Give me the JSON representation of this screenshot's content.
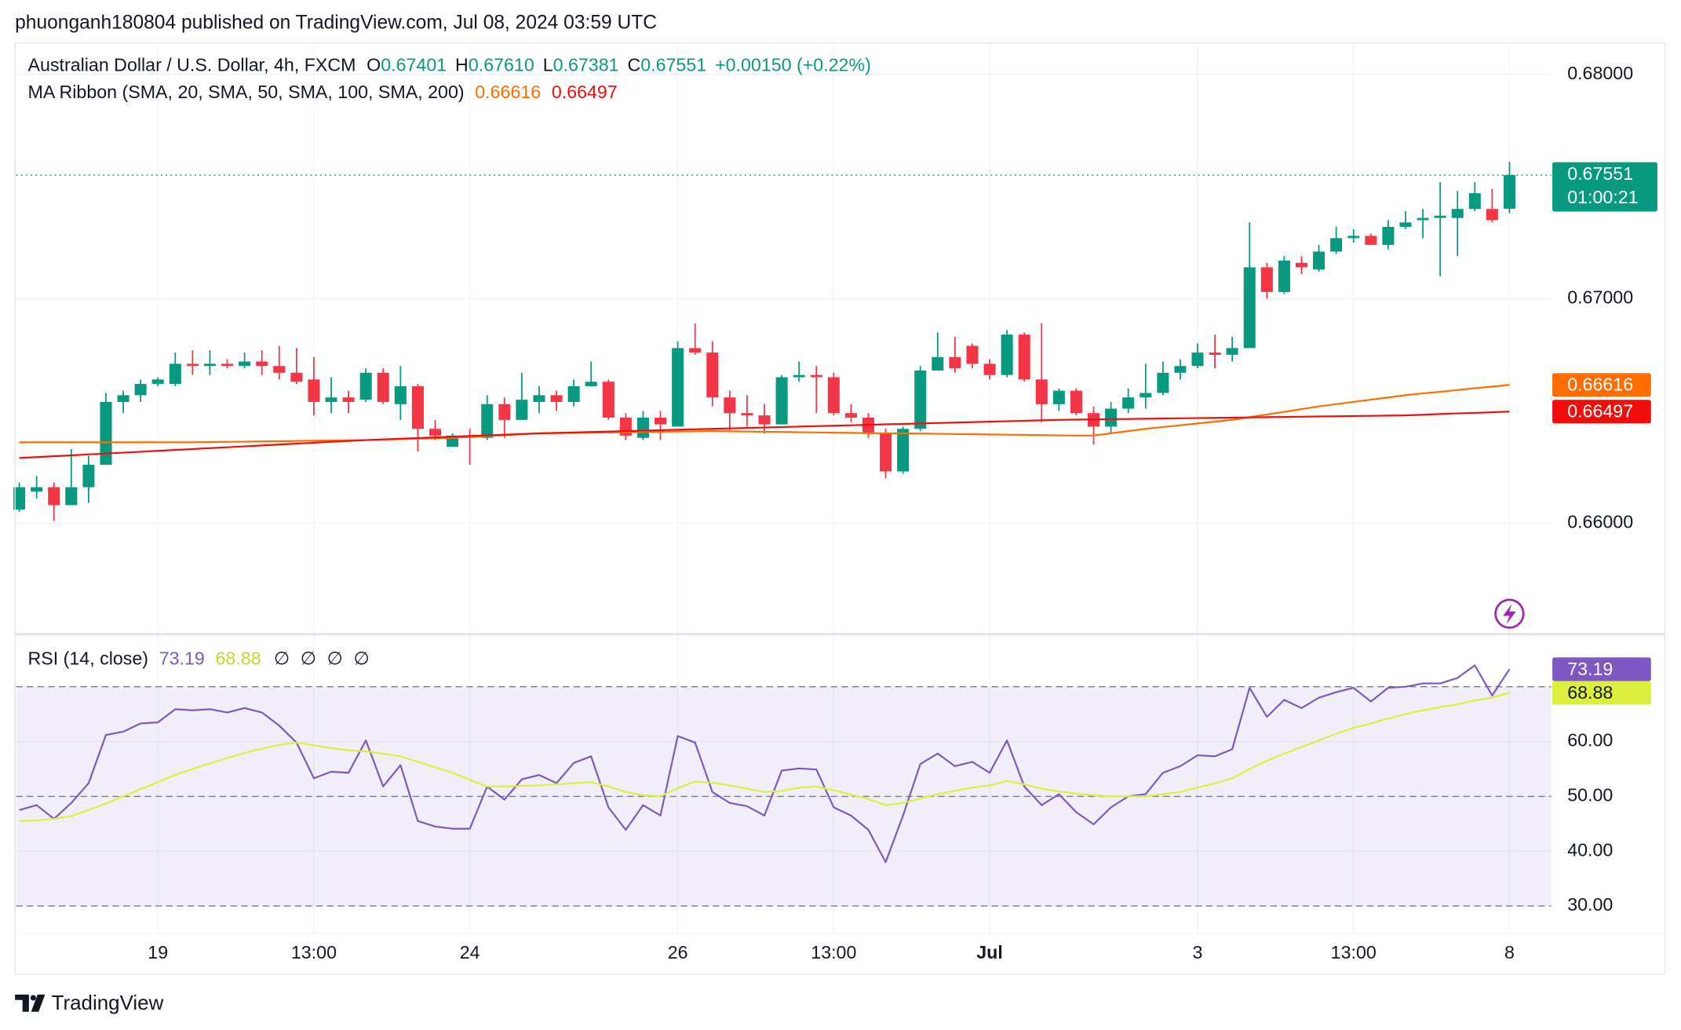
{
  "header": "phuonganh180804 published on TradingView.com, Jul 08, 2024 03:59 UTC",
  "footer": "TradingView",
  "chart_data": [
    {
      "type": "candlestick",
      "title": "Australian Dollar / U.S. Dollar, 4h, FXCM",
      "ohlc": [
        {
          "label": "O",
          "value": "0.67401"
        },
        {
          "label": "H",
          "value": "0.67610"
        },
        {
          "label": "L",
          "value": "0.67381"
        },
        {
          "label": "C",
          "value": "0.67551"
        }
      ],
      "change": "+0.00150 (+0.22%)",
      "indicator": "MA Ribbon (SMA, 20, SMA, 50, SMA, 100, SMA, 200)",
      "countdown": "01:00:21",
      "categories": [
        null,
        null,
        null,
        null,
        null,
        null,
        null,
        null,
        "19",
        null,
        null,
        null,
        null,
        null,
        null,
        null,
        null,
        "13:00",
        null,
        null,
        null,
        null,
        null,
        null,
        null,
        null,
        "24",
        null,
        null,
        null,
        null,
        null,
        null,
        null,
        null,
        null,
        null,
        null,
        "26",
        null,
        null,
        null,
        null,
        null,
        null,
        null,
        null,
        "13:00",
        null,
        null,
        null,
        null,
        null,
        null,
        null,
        null,
        "Jul",
        null,
        null,
        null,
        null,
        null,
        null,
        null,
        null,
        null,
        null,
        null,
        "3",
        null,
        null,
        null,
        null,
        null,
        null,
        null,
        null,
        "13:00",
        null,
        null,
        null,
        null,
        null,
        null,
        null,
        null,
        "8"
      ],
      "open": [
        0.6606,
        0.6614,
        0.6616,
        0.6608,
        0.6616,
        0.6626,
        0.6654,
        0.6657,
        0.6662,
        0.6662,
        0.6671,
        0.667,
        0.6671,
        0.667,
        0.6672,
        0.667,
        0.6667,
        0.6664,
        0.6654,
        0.6656,
        0.6655,
        0.6667,
        0.6653,
        0.6661,
        0.6642,
        0.6634,
        0.6639,
        0.6638,
        0.6653,
        0.6646,
        0.6654,
        0.6657,
        0.6654,
        0.6661,
        0.6663,
        0.6647,
        0.6638,
        0.6647,
        0.6643,
        0.6678,
        0.6676,
        0.6656,
        0.6649,
        0.6648,
        0.6644,
        0.6665,
        0.6666,
        0.6665,
        0.6649,
        0.6647,
        0.664,
        0.6623,
        0.6642,
        0.6668,
        0.6674,
        0.6679,
        0.6671,
        0.6666,
        0.6684,
        0.6664,
        0.6653,
        0.6659,
        0.6649,
        0.6643,
        0.6651,
        0.6656,
        0.6658,
        0.6667,
        0.667,
        0.6676,
        0.6675,
        0.6678,
        0.6714,
        0.6703,
        0.6716,
        0.6713,
        0.6721,
        0.6727,
        0.6728,
        0.6724,
        0.6732,
        0.6735,
        0.6736,
        0.6736,
        0.674,
        0.674,
        0.67401
      ],
      "high": [
        0.6618,
        0.6621,
        0.6618,
        0.6633,
        0.663,
        0.6658,
        0.6659,
        0.6664,
        0.6665,
        0.6676,
        0.6677,
        0.6677,
        0.6673,
        0.6676,
        0.6677,
        0.6679,
        0.6678,
        0.6674,
        0.6665,
        0.6659,
        0.6669,
        0.6669,
        0.667,
        0.6662,
        0.6646,
        0.664,
        0.6642,
        0.6657,
        0.6656,
        0.6667,
        0.6661,
        0.6659,
        0.6664,
        0.6672,
        0.6664,
        0.6649,
        0.665,
        0.665,
        0.6681,
        0.6689,
        0.6681,
        0.6659,
        0.6657,
        0.6653,
        0.6666,
        0.6672,
        0.667,
        0.6667,
        0.6653,
        0.6649,
        0.6642,
        0.6643,
        0.667,
        0.6685,
        0.6683,
        0.668,
        0.6673,
        0.6686,
        0.6685,
        0.6689,
        0.666,
        0.666,
        0.6652,
        0.6654,
        0.666,
        0.6671,
        0.6672,
        0.6673,
        0.668,
        0.6684,
        0.6683,
        0.6734,
        0.6716,
        0.6719,
        0.6719,
        0.6724,
        0.6732,
        0.6731,
        0.6729,
        0.6735,
        0.6739,
        0.674,
        0.6752,
        0.6748,
        0.6752,
        0.6749,
        0.6761
      ],
      "low": [
        0.6605,
        0.6611,
        0.6601,
        0.6608,
        0.6609,
        0.6626,
        0.6649,
        0.6654,
        0.6661,
        0.6661,
        0.6666,
        0.6666,
        0.6669,
        0.6669,
        0.6666,
        0.6664,
        0.6662,
        0.6648,
        0.6649,
        0.6649,
        0.6654,
        0.6653,
        0.6646,
        0.6632,
        0.6637,
        0.6634,
        0.6626,
        0.6637,
        0.6638,
        0.6646,
        0.6649,
        0.665,
        0.6652,
        0.6661,
        0.6646,
        0.6637,
        0.6637,
        0.6637,
        0.6643,
        0.6675,
        0.6652,
        0.6641,
        0.6643,
        0.664,
        0.6644,
        0.6663,
        0.6649,
        0.6648,
        0.6645,
        0.6638,
        0.662,
        0.6622,
        0.6641,
        0.6668,
        0.6667,
        0.6669,
        0.6664,
        0.6665,
        0.6663,
        0.6645,
        0.665,
        0.6648,
        0.6635,
        0.664,
        0.6649,
        0.6651,
        0.6657,
        0.6664,
        0.6669,
        0.6669,
        0.6672,
        0.6678,
        0.67,
        0.6702,
        0.6711,
        0.6712,
        0.672,
        0.6725,
        0.6724,
        0.6722,
        0.6731,
        0.6727,
        0.671,
        0.6719,
        0.6739,
        0.6734,
        0.67381
      ],
      "close": [
        0.6616,
        0.6616,
        0.6608,
        0.6616,
        0.6626,
        0.6654,
        0.6657,
        0.6662,
        0.6664,
        0.6671,
        0.667,
        0.6671,
        0.667,
        0.6672,
        0.667,
        0.6667,
        0.6663,
        0.6654,
        0.6656,
        0.6654,
        0.6667,
        0.6654,
        0.6661,
        0.6642,
        0.6639,
        0.6639,
        0.6638,
        0.6653,
        0.6646,
        0.6655,
        0.6657,
        0.6654,
        0.6661,
        0.6663,
        0.6647,
        0.6639,
        0.6647,
        0.6644,
        0.6678,
        0.6676,
        0.6656,
        0.6649,
        0.6648,
        0.6644,
        0.6665,
        0.6666,
        0.6665,
        0.6649,
        0.6647,
        0.664,
        0.6623,
        0.6642,
        0.6668,
        0.6674,
        0.6669,
        0.6671,
        0.6666,
        0.6684,
        0.6664,
        0.6653,
        0.6659,
        0.6649,
        0.6643,
        0.6651,
        0.6656,
        0.6658,
        0.6667,
        0.667,
        0.6676,
        0.6675,
        0.6678,
        0.6714,
        0.6703,
        0.6717,
        0.6714,
        0.6721,
        0.6727,
        0.6728,
        0.6724,
        0.6732,
        0.6734,
        0.6736,
        0.6737,
        0.674,
        0.6747,
        0.6735,
        0.67551
      ],
      "up_color": "#089981",
      "down_color": "#f23645",
      "series": [
        {
          "color": "#ff6d00",
          "values": [
            0.6636,
            0.6636,
            0.6636,
            0.6636,
            0.6636,
            0.6636,
            0.6636,
            0.6636,
            0.6636,
            0.6636,
            0.6636,
            0.66361,
            0.66362,
            0.66363,
            0.66364,
            0.66365,
            0.66366,
            0.66367,
            0.66368,
            0.66369,
            0.6637,
            0.66372,
            0.66374,
            0.66376,
            0.66378,
            0.6638,
            0.66384,
            0.66388,
            0.66392,
            0.66396,
            0.664,
            0.66401,
            0.66402,
            0.66403,
            0.66404,
            0.66405,
            0.66406,
            0.66407,
            0.66408,
            0.66409,
            0.6641,
            0.66409,
            0.66408,
            0.66407,
            0.66406,
            0.66405,
            0.66404,
            0.66403,
            0.66402,
            0.66401,
            0.664,
            0.664,
            0.66399,
            0.66398,
            0.66397,
            0.66396,
            0.66395,
            0.66394,
            0.66393,
            0.66392,
            0.66391,
            0.6639,
            0.6639,
            0.664,
            0.6641,
            0.6642,
            0.66428,
            0.66436,
            0.66444,
            0.66452,
            0.6646,
            0.66472,
            0.66484,
            0.66496,
            0.66508,
            0.6652,
            0.6653,
            0.6654,
            0.6655,
            0.6656,
            0.6657,
            0.66578,
            0.66585,
            0.66593,
            0.66601,
            0.66608,
            0.66616
          ]
        },
        {
          "color": "#f20d0d",
          "values": [
            0.6629,
            0.66294,
            0.66298,
            0.66302,
            0.66306,
            0.6631,
            0.66314,
            0.66318,
            0.66322,
            0.66326,
            0.6633,
            0.66334,
            0.66338,
            0.66342,
            0.66346,
            0.6635,
            0.66354,
            0.66358,
            0.66362,
            0.66366,
            0.6637,
            0.66373,
            0.66376,
            0.66379,
            0.66382,
            0.66385,
            0.66388,
            0.66391,
            0.66394,
            0.66397,
            0.664,
            0.66402,
            0.66404,
            0.66406,
            0.66408,
            0.6641,
            0.66412,
            0.66414,
            0.66416,
            0.66418,
            0.6642,
            0.66422,
            0.66424,
            0.66426,
            0.66428,
            0.6643,
            0.66432,
            0.66434,
            0.66436,
            0.66438,
            0.6644,
            0.66442,
            0.66444,
            0.66446,
            0.66448,
            0.6645,
            0.66452,
            0.66454,
            0.66456,
            0.66458,
            0.6646,
            0.66461,
            0.66462,
            0.66463,
            0.66464,
            0.66465,
            0.66466,
            0.66467,
            0.66468,
            0.66469,
            0.6647,
            0.66471,
            0.66472,
            0.66473,
            0.66474,
            0.66475,
            0.66476,
            0.66477,
            0.66478,
            0.66479,
            0.6648,
            0.66483,
            0.66486,
            0.66489,
            0.66491,
            0.66494,
            0.66497
          ]
        }
      ],
      "ylim": [
        0.6551,
        0.6814
      ],
      "yticks": [
        {
          "value": 0.66,
          "label": "0.66000"
        },
        {
          "value": 0.67,
          "label": "0.67000"
        },
        {
          "value": 0.68,
          "label": "0.68000"
        }
      ],
      "grid": true
    },
    {
      "type": "line",
      "title": "RSI (14, close)",
      "placeholders": [
        "∅",
        "∅",
        "∅",
        "∅"
      ],
      "series": [
        {
          "color": "#7e57c2",
          "values": [
            47.5,
            48.4,
            45.9,
            48.8,
            52.4,
            61.2,
            61.8,
            63.3,
            63.5,
            65.9,
            65.7,
            65.9,
            65.3,
            66.1,
            65.3,
            62.9,
            59.8,
            53.3,
            54.5,
            54.3,
            60.2,
            51.8,
            55.7,
            45.5,
            44.5,
            44.1,
            44.1,
            51.8,
            49.4,
            53.1,
            53.9,
            52.4,
            56.1,
            57.3,
            48.0,
            43.9,
            48.4,
            46.5,
            61.0,
            59.8,
            50.8,
            48.8,
            48.2,
            46.5,
            54.7,
            55.1,
            54.9,
            48.0,
            46.5,
            43.9,
            38.0,
            46.5,
            55.9,
            57.8,
            55.5,
            56.3,
            54.3,
            60.2,
            51.8,
            48.4,
            50.4,
            47.1,
            44.9,
            48.0,
            50.0,
            50.4,
            54.3,
            55.5,
            57.5,
            57.3,
            58.6,
            69.8,
            64.5,
            67.6,
            66.1,
            68.0,
            69.0,
            69.8,
            67.3,
            69.8,
            70.0,
            70.6,
            70.6,
            71.6,
            73.9,
            68.4,
            73.19
          ]
        },
        {
          "color": "#dcef3c",
          "values": [
            45.5,
            45.6,
            45.9,
            46.4,
            47.5,
            48.7,
            50.0,
            51.3,
            52.6,
            53.9,
            55.0,
            56.0,
            57.0,
            57.9,
            58.7,
            59.4,
            59.8,
            59.3,
            58.8,
            58.4,
            58.2,
            57.8,
            57.3,
            56.3,
            55.3,
            54.3,
            53.0,
            51.8,
            51.8,
            51.9,
            52.0,
            52.2,
            52.4,
            52.6,
            51.8,
            50.8,
            50.2,
            50.0,
            51.5,
            52.7,
            52.5,
            52.0,
            51.4,
            50.8,
            51.0,
            51.6,
            51.8,
            51.1,
            50.3,
            49.5,
            48.4,
            48.8,
            49.6,
            50.4,
            51.0,
            51.6,
            52.0,
            52.8,
            52.2,
            51.4,
            50.9,
            50.5,
            50.2,
            50.0,
            50.0,
            50.0,
            50.4,
            50.8,
            51.6,
            52.4,
            53.3,
            55.0,
            56.5,
            57.8,
            59.0,
            60.2,
            61.4,
            62.5,
            63.3,
            64.2,
            65.0,
            65.7,
            66.3,
            66.8,
            67.5,
            68.0,
            68.88
          ]
        }
      ],
      "levels": [
        30,
        50,
        70
      ],
      "ylim": [
        25,
        79.4
      ],
      "yticks": [
        {
          "value": 30,
          "label": "30.00"
        },
        {
          "value": 40,
          "label": "40.00"
        },
        {
          "value": 50,
          "label": "50.00"
        },
        {
          "value": 60,
          "label": "60.00"
        }
      ],
      "grid": true
    }
  ]
}
